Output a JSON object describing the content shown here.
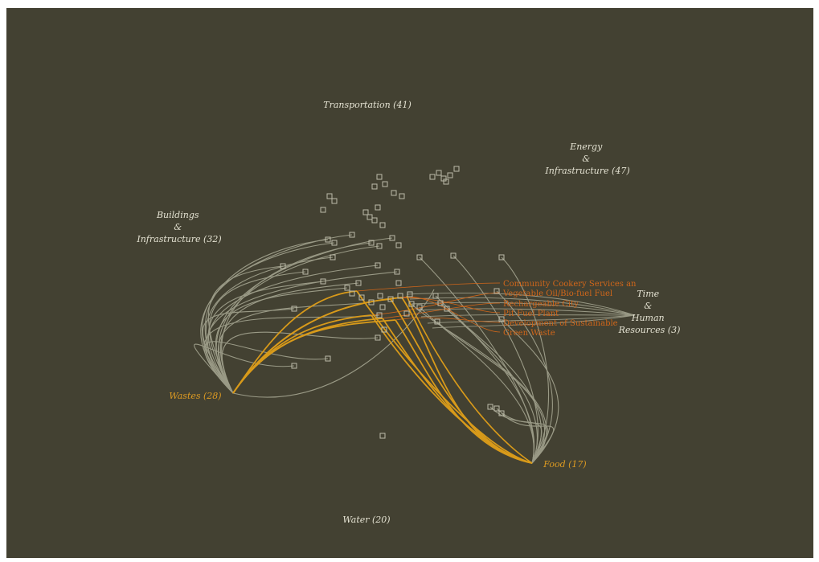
{
  "colors": {
    "background": "#434132",
    "frame": "#ffffff",
    "link": "#9a9a86",
    "highlight": "#d89a1a",
    "category_text": "#e4e2d2",
    "highlight_text": "#dc9a22",
    "project_text": "#d0661a",
    "node_stroke": "#bdbcaa"
  },
  "categories": [
    {
      "id": "transportation",
      "label": "Transportation (41)",
      "highlighted": false
    },
    {
      "id": "energy",
      "lines": [
        "Energy",
        "&",
        "Infrastructure (47)"
      ],
      "highlighted": false
    },
    {
      "id": "buildings",
      "lines": [
        "Buildings",
        "&",
        "Infrastructure (32)"
      ],
      "highlighted": false
    },
    {
      "id": "time",
      "lines": [
        "Time",
        "&",
        "Human",
        "Resources (3)"
      ],
      "highlighted": false
    },
    {
      "id": "wastes",
      "label": "Wastes (28)",
      "highlighted": true
    },
    {
      "id": "food",
      "label": "Food (17)",
      "highlighted": true
    },
    {
      "id": "water",
      "label": "Water (20)",
      "highlighted": false
    }
  ],
  "highlighted_projects": [
    "Community Cookery Services an",
    "Vegetable Oil/Bio-fuel Fuel",
    "Rechargeable City",
    "Pit Fuel Plant",
    "Development of Sustainable",
    "Green Waste"
  ]
}
